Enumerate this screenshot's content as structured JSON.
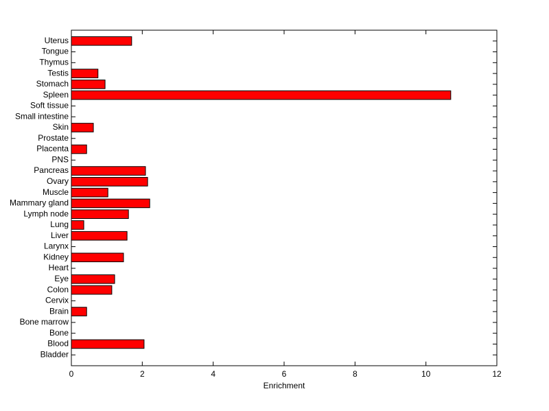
{
  "chart_data": {
    "type": "bar",
    "orientation": "horizontal",
    "xlabel": "Enrichment",
    "categories": [
      "Bladder",
      "Blood",
      "Bone",
      "Bone marrow",
      "Brain",
      "Cervix",
      "Colon",
      "Eye",
      "Heart",
      "Kidney",
      "Larynx",
      "Liver",
      "Lung",
      "Lymph node",
      "Mammary gland",
      "Muscle",
      "Ovary",
      "Pancreas",
      "PNS",
      "Placenta",
      "Prostate",
      "Skin",
      "Small intestine",
      "Soft tissue",
      "Spleen",
      "Stomach",
      "Testis",
      "Thymus",
      "Tongue",
      "Uterus"
    ],
    "values": [
      0,
      2.05,
      0,
      0,
      0.43,
      0,
      1.14,
      1.22,
      0,
      1.47,
      0,
      1.57,
      0.35,
      1.61,
      2.21,
      1.03,
      2.15,
      2.09,
      0,
      0.43,
      0,
      0.62,
      0,
      0,
      10.7,
      0.95,
      0.75,
      0,
      0,
      1.7
    ],
    "color": "#ff0000",
    "xlim": [
      0,
      12
    ],
    "xticks": [
      0,
      2,
      4,
      6,
      8,
      10,
      12
    ],
    "grid": false
  }
}
